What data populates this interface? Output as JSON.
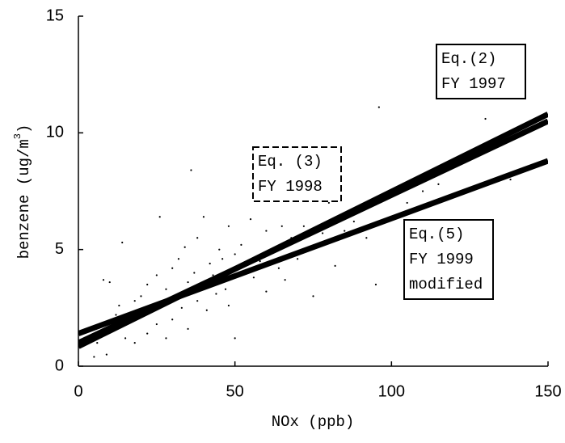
{
  "chart_data": {
    "type": "scatter",
    "x_label": "NOx (ppb)",
    "y_label": {
      "text": "benzene (ug/m",
      "sup": "3",
      "end": ")"
    },
    "xlim": [
      0,
      150
    ],
    "xticks": [
      0,
      50,
      100,
      150
    ],
    "ylim": [
      0,
      15
    ],
    "yticks": [
      0,
      5,
      10,
      15
    ],
    "color": "#000000",
    "points": {
      "x": [
        5,
        6,
        8,
        9,
        10,
        10,
        12,
        13,
        14,
        15,
        16,
        18,
        18,
        20,
        20,
        22,
        22,
        24,
        25,
        25,
        26,
        27,
        28,
        28,
        30,
        30,
        31,
        32,
        33,
        34,
        35,
        35,
        36,
        37,
        38,
        38,
        40,
        40,
        41,
        42,
        43,
        44,
        45,
        46,
        47,
        48,
        48,
        50,
        50,
        52,
        53,
        55,
        56,
        58,
        60,
        60,
        62,
        64,
        65,
        66,
        68,
        70,
        72,
        75,
        78,
        80,
        82,
        85,
        88,
        90,
        92,
        95,
        96,
        100,
        105,
        110,
        115,
        120,
        130,
        138
      ],
      "values": [
        0.4,
        1.0,
        3.7,
        0.5,
        1.5,
        3.6,
        2.2,
        2.6,
        5.3,
        1.2,
        2.0,
        2.8,
        1.0,
        3.0,
        2.1,
        1.4,
        3.5,
        2.4,
        3.9,
        1.8,
        6.4,
        2.7,
        1.2,
        3.3,
        4.2,
        2.0,
        3.0,
        4.6,
        2.5,
        5.1,
        3.6,
        1.6,
        8.4,
        4.0,
        2.8,
        5.5,
        3.4,
        6.4,
        2.4,
        4.4,
        3.9,
        3.1,
        5.0,
        4.6,
        3.3,
        6.0,
        2.6,
        4.8,
        1.2,
        5.2,
        4.0,
        6.3,
        3.8,
        4.5,
        5.8,
        3.2,
        5.0,
        4.2,
        6.0,
        3.7,
        5.5,
        4.6,
        6.0,
        3.0,
        5.7,
        7.0,
        4.3,
        5.8,
        6.2,
        6.8,
        5.5,
        3.5,
        11.1,
        6.3,
        7.0,
        7.5,
        7.8,
        8.6,
        10.6,
        8.0
      ]
    },
    "lines": [
      {
        "x": [
          0,
          150
        ],
        "values": [
          0.85,
          10.8
        ]
      },
      {
        "x": [
          0,
          150
        ],
        "values": [
          1.0,
          10.5
        ]
      },
      {
        "x": [
          0,
          150
        ],
        "values": [
          1.4,
          8.8
        ]
      }
    ],
    "annotations": [
      {
        "lines": [
          "Eq.(2)",
          "FY 1997"
        ],
        "border": "solid"
      },
      {
        "lines": [
          "Eq. (3)",
          "FY 1998"
        ],
        "border": "dashed"
      },
      {
        "lines": [
          "Eq.(5)",
          "FY 1999",
          "modified"
        ],
        "border": "solid"
      }
    ]
  }
}
